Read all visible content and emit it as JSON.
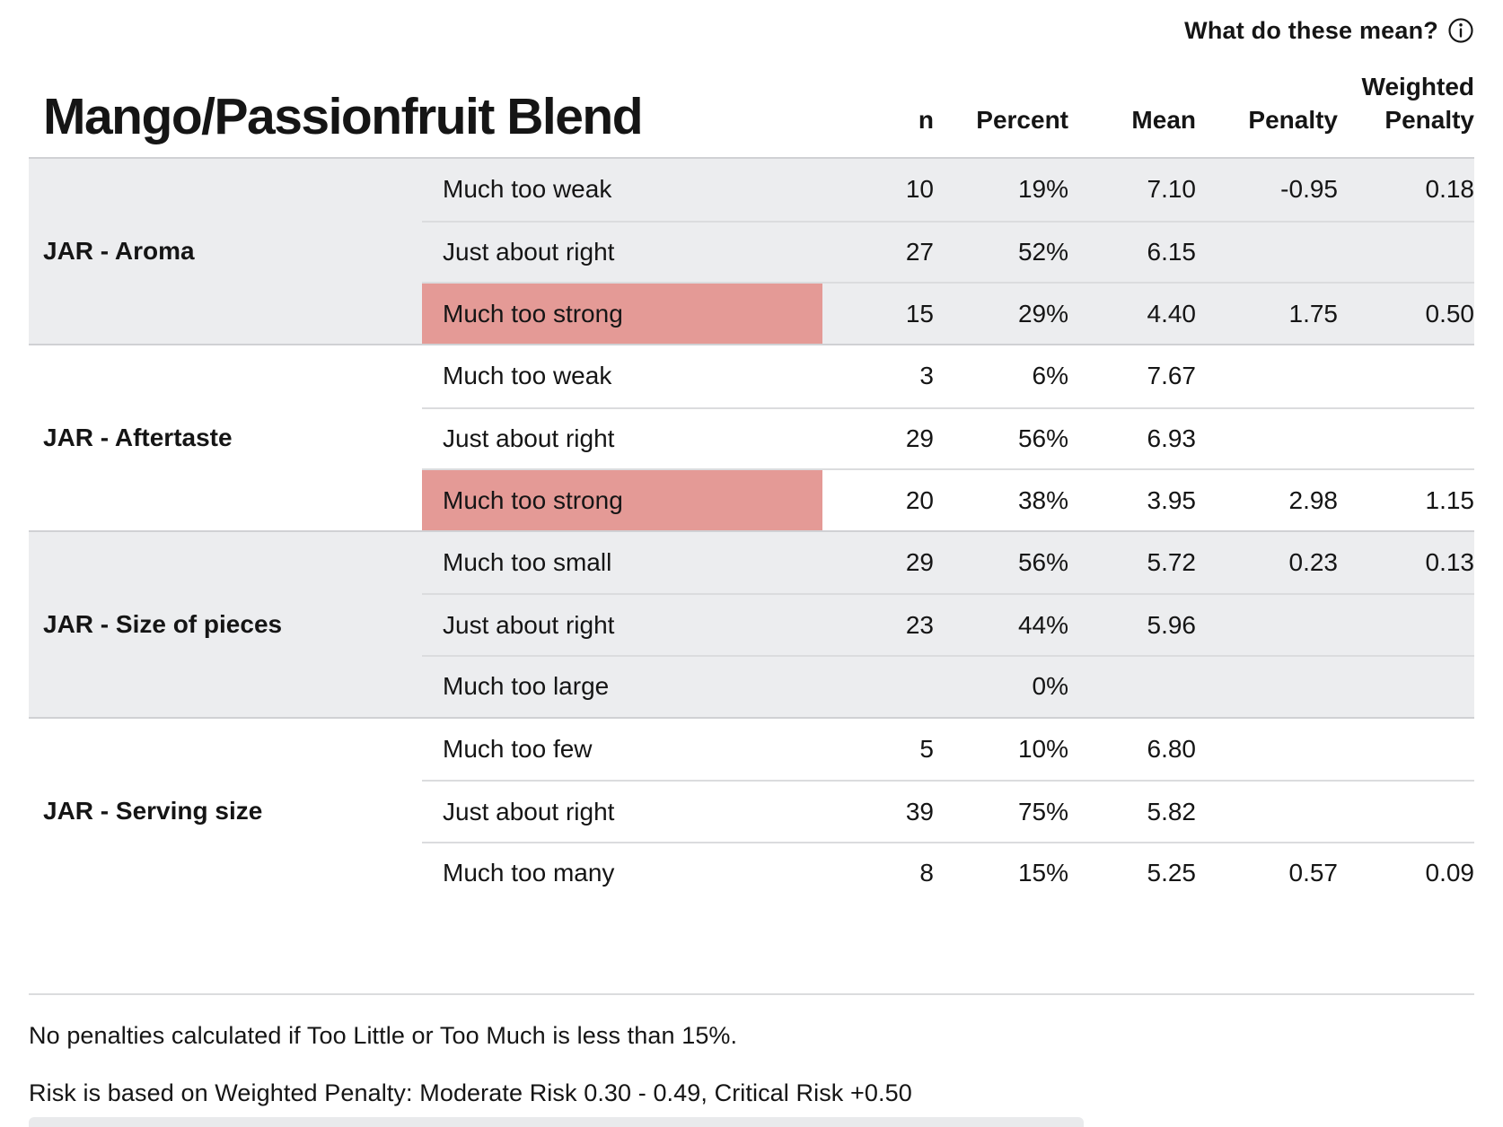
{
  "topbar": {
    "help_label": "What do these mean?"
  },
  "title": "Mango/Passionfruit Blend",
  "columns": {
    "n": "n",
    "percent": "Percent",
    "mean": "Mean",
    "penalty": "Penalty",
    "weighted_line1": "Weighted",
    "weighted_line2": "Penalty"
  },
  "colors": {
    "band": "#ECEDEF",
    "highlight": "#E49A96",
    "rowline": "#DBDCDE",
    "groupline": "#D0D1D4",
    "text": "#151515"
  },
  "groups": [
    {
      "label": "JAR - Aroma",
      "shaded": true,
      "rows": [
        {
          "level": "Much too weak",
          "n": "10",
          "percent": "19%",
          "mean": "7.10",
          "penalty": "-0.95",
          "weighted_penalty": "0.18",
          "highlight": false
        },
        {
          "level": "Just about right",
          "n": "27",
          "percent": "52%",
          "mean": "6.15",
          "penalty": "",
          "weighted_penalty": "",
          "highlight": false
        },
        {
          "level": "Much too strong",
          "n": "15",
          "percent": "29%",
          "mean": "4.40",
          "penalty": "1.75",
          "weighted_penalty": "0.50",
          "highlight": true
        }
      ]
    },
    {
      "label": "JAR - Aftertaste",
      "shaded": false,
      "rows": [
        {
          "level": "Much too weak",
          "n": "3",
          "percent": "6%",
          "mean": "7.67",
          "penalty": "",
          "weighted_penalty": "",
          "highlight": false
        },
        {
          "level": "Just about right",
          "n": "29",
          "percent": "56%",
          "mean": "6.93",
          "penalty": "",
          "weighted_penalty": "",
          "highlight": false
        },
        {
          "level": "Much too strong",
          "n": "20",
          "percent": "38%",
          "mean": "3.95",
          "penalty": "2.98",
          "weighted_penalty": "1.15",
          "highlight": true
        }
      ]
    },
    {
      "label": "JAR - Size of pieces",
      "shaded": true,
      "rows": [
        {
          "level": "Much too small",
          "n": "29",
          "percent": "56%",
          "mean": "5.72",
          "penalty": "0.23",
          "weighted_penalty": "0.13",
          "highlight": false
        },
        {
          "level": "Just about right",
          "n": "23",
          "percent": "44%",
          "mean": "5.96",
          "penalty": "",
          "weighted_penalty": "",
          "highlight": false
        },
        {
          "level": "Much too large",
          "n": "",
          "percent": "0%",
          "mean": "",
          "penalty": "",
          "weighted_penalty": "",
          "highlight": false
        }
      ]
    },
    {
      "label": "JAR - Serving size",
      "shaded": false,
      "rows": [
        {
          "level": "Much too few",
          "n": "5",
          "percent": "10%",
          "mean": "6.80",
          "penalty": "",
          "weighted_penalty": "",
          "highlight": false
        },
        {
          "level": "Just about right",
          "n": "39",
          "percent": "75%",
          "mean": "5.82",
          "penalty": "",
          "weighted_penalty": "",
          "highlight": false
        },
        {
          "level": "Much too many",
          "n": "8",
          "percent": "15%",
          "mean": "5.25",
          "penalty": "0.57",
          "weighted_penalty": "0.09",
          "highlight": false
        }
      ]
    }
  ],
  "footnotes": [
    "No penalties calculated if Too Little or Too Much is less than 15%.",
    "Risk is based on Weighted Penalty: Moderate Risk 0.30 - 0.49, Critical Risk +0.50"
  ]
}
